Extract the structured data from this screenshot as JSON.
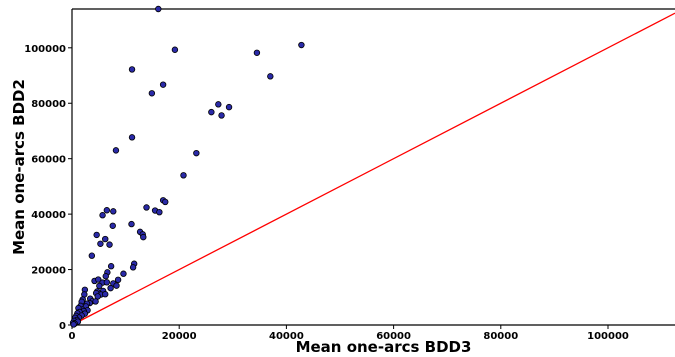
{
  "chart_data": {
    "type": "scatter",
    "xlabel": "Mean one-arcs BDD3",
    "ylabel": "Mean one-arcs BDD2",
    "xlim": [
      0,
      112500
    ],
    "ylim": [
      0,
      114000
    ],
    "x_ticks": [
      0,
      20000,
      40000,
      60000,
      80000,
      100000
    ],
    "y_ticks": [
      0,
      20000,
      40000,
      60000,
      80000,
      100000
    ],
    "grid": false,
    "legend": "none",
    "marker_color": "#2a2aa8",
    "marker_edge": "#000000",
    "reference_line": {
      "from": [
        0,
        0
      ],
      "to": [
        112500,
        112500
      ],
      "color": "#ff0000"
    },
    "points": [
      [
        16100,
        114000
      ],
      [
        42800,
        101000
      ],
      [
        19200,
        99300
      ],
      [
        34500,
        98200
      ],
      [
        11200,
        92200
      ],
      [
        37000,
        89700
      ],
      [
        17000,
        86700
      ],
      [
        14900,
        83600
      ],
      [
        27300,
        79600
      ],
      [
        29300,
        78600
      ],
      [
        26000,
        76800
      ],
      [
        27900,
        75600
      ],
      [
        11200,
        67700
      ],
      [
        8200,
        63000
      ],
      [
        23200,
        62000
      ],
      [
        20800,
        54000
      ],
      [
        17000,
        45000
      ],
      [
        17400,
        44400
      ],
      [
        13900,
        42400
      ],
      [
        15500,
        41300
      ],
      [
        16300,
        40700
      ],
      [
        6500,
        41400
      ],
      [
        7700,
        41000
      ],
      [
        5700,
        39600
      ],
      [
        11100,
        36400
      ],
      [
        7600,
        35800
      ],
      [
        12700,
        33600
      ],
      [
        13200,
        32700
      ],
      [
        13300,
        31700
      ],
      [
        4600,
        32500
      ],
      [
        6200,
        31000
      ],
      [
        5300,
        29300
      ],
      [
        7000,
        29000
      ],
      [
        3700,
        25000
      ],
      [
        11600,
        22100
      ],
      [
        11400,
        20800
      ],
      [
        7300,
        21200
      ],
      [
        6600,
        19000
      ],
      [
        9600,
        18500
      ],
      [
        6300,
        17600
      ],
      [
        4200,
        15900
      ],
      [
        4900,
        16400
      ],
      [
        5700,
        15300
      ],
      [
        6500,
        15400
      ],
      [
        7700,
        15000
      ],
      [
        8600,
        16300
      ],
      [
        7200,
        13300
      ],
      [
        8300,
        14200
      ],
      [
        5100,
        14100
      ],
      [
        5800,
        12300
      ],
      [
        4700,
        12100
      ],
      [
        5400,
        11000
      ],
      [
        6200,
        11100
      ],
      [
        4500,
        11500
      ],
      [
        4800,
        10300
      ],
      [
        2400,
        12700
      ],
      [
        2300,
        11000
      ],
      [
        2000,
        9200
      ],
      [
        3400,
        9500
      ],
      [
        3800,
        8600
      ],
      [
        4400,
        8500
      ],
      [
        3300,
        7900
      ],
      [
        2800,
        7700
      ],
      [
        1800,
        8400
      ],
      [
        1600,
        6900
      ],
      [
        2600,
        6700
      ],
      [
        1900,
        5600
      ],
      [
        2900,
        5300
      ],
      [
        2200,
        5000
      ],
      [
        1200,
        6100
      ],
      [
        1400,
        4700
      ],
      [
        2400,
        4100
      ],
      [
        1000,
        4200
      ],
      [
        800,
        3300
      ],
      [
        1800,
        3400
      ],
      [
        1300,
        2700
      ],
      [
        600,
        2600
      ],
      [
        900,
        1800
      ],
      [
        400,
        1500
      ],
      [
        1100,
        1200
      ],
      [
        200,
        800
      ],
      [
        500,
        500
      ],
      [
        300,
        200
      ]
    ]
  }
}
